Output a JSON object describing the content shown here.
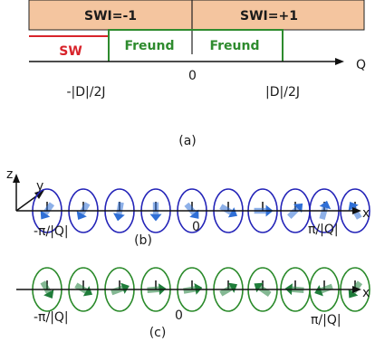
{
  "panel_a": {
    "swi_left": "SWI=-1",
    "swi_right": "SWI=+1",
    "sw_label": "SW",
    "freund_left": "Freund",
    "freund_right": "Freund",
    "origin": "0",
    "axis_label": "Q",
    "neg_tick": "-|D|/2J",
    "pos_tick": "|D|/2J",
    "caption": "(a)"
  },
  "panel_b": {
    "z": "z",
    "y": "y",
    "x": "x",
    "left": "-π/|Q|",
    "zero": "0",
    "right": "π/|Q|",
    "caption": "(b)"
  },
  "panel_c": {
    "x": "x",
    "left": "-π/|Q|",
    "zero": "0",
    "right": "π/|Q|",
    "caption": "(c)"
  },
  "colors": {
    "sw_red": "#d8232a",
    "freund_green": "#2e8b2e",
    "ellipse_blue": "#2424b8",
    "arrow_blue": "#2f6fd6",
    "ellipse_green": "#2a8a2a",
    "arrow_green": "#1f7d3a"
  },
  "spins_b": [
    235,
    240,
    260,
    270,
    310,
    330,
    0,
    45,
    75,
    120
  ],
  "spins_c": [
    300,
    330,
    20,
    5,
    10,
    30,
    145,
    175,
    200,
    235
  ]
}
